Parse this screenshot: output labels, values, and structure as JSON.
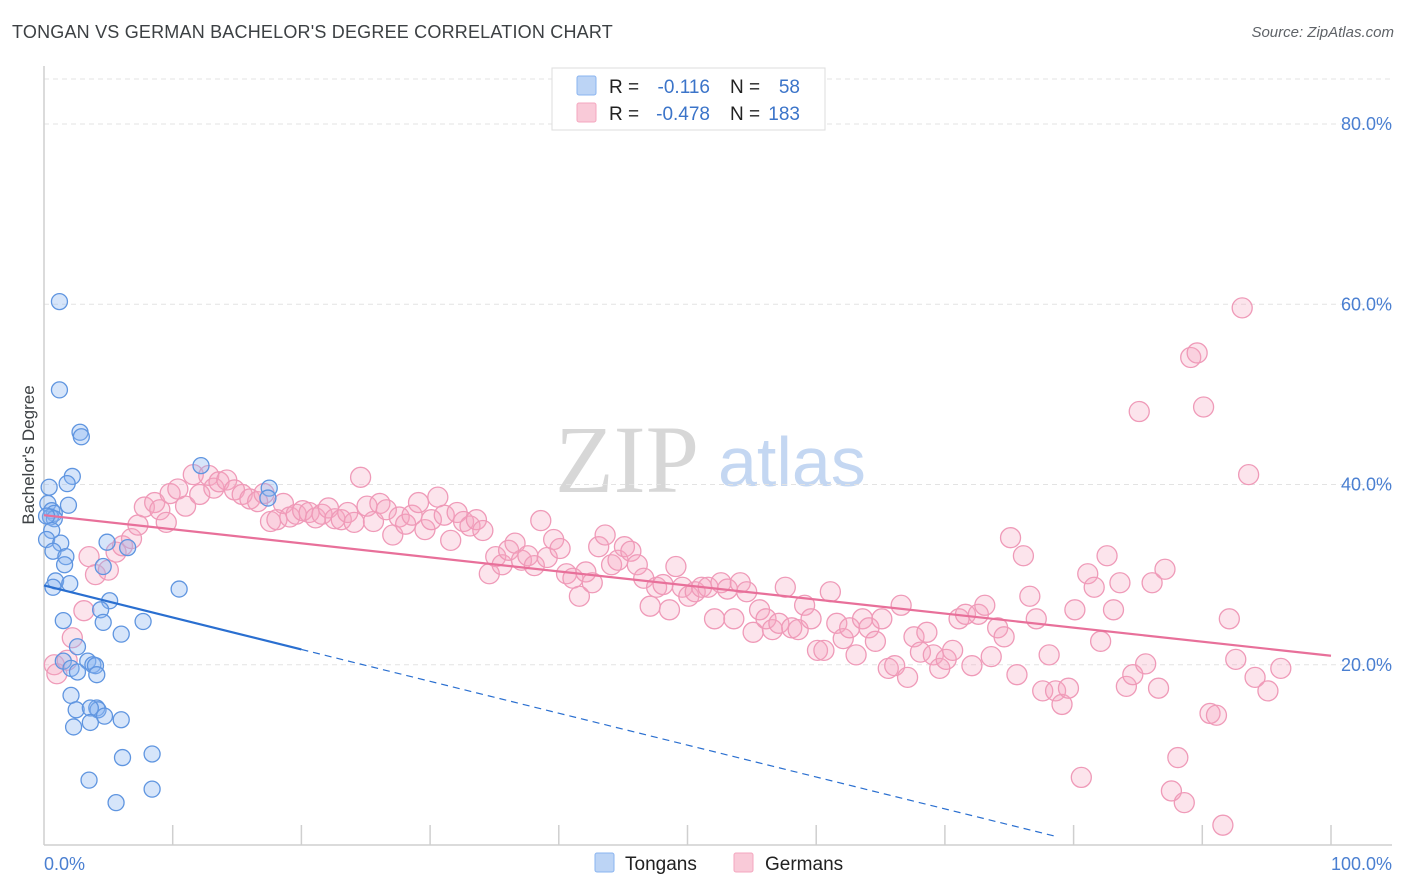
{
  "title": "TONGAN VS GERMAN BACHELOR'S DEGREE CORRELATION CHART",
  "source": "Source: ZipAtlas.com",
  "watermark": {
    "zip": "ZIP",
    "atlas": "atlas"
  },
  "legend": {
    "r_label": "R =",
    "n_label": "N =",
    "rows": [
      {
        "name": "Tongans",
        "r": "-0.116",
        "n": "58",
        "color": "#8ab4f0"
      },
      {
        "name": "Germans",
        "r": "-0.478",
        "n": "183",
        "color": "#f4a7bf"
      }
    ]
  },
  "chart_data": {
    "type": "scatter",
    "title": "TONGAN VS GERMAN BACHELOR'S DEGREE CORRELATION CHART",
    "xlabel": "",
    "ylabel": "Bachelor's Degree",
    "xlim": [
      0,
      100
    ],
    "ylim": [
      0,
      85
    ],
    "x_tick_labels": [
      "0.0%",
      "100.0%"
    ],
    "y_ticks": [
      20,
      40,
      60,
      80
    ],
    "y_tick_labels": [
      "20.0%",
      "40.0%",
      "60.0%",
      "80.0%"
    ],
    "grid": "horizontal dashed",
    "legend_position": "top-center",
    "series": [
      {
        "name": "Tongans",
        "color": "#6fa3ea",
        "trend": {
          "x0": 0,
          "y0": 28.8,
          "x1": 20,
          "y1": 21.7,
          "dashed_to_x": 78.5,
          "dashed_to_y": 1.0
        },
        "points": [
          [
            1.2,
            60.3
          ],
          [
            1.2,
            50.5
          ],
          [
            2.8,
            45.8
          ],
          [
            2.9,
            45.3
          ],
          [
            2.2,
            40.9
          ],
          [
            1.8,
            40.1
          ],
          [
            0.4,
            39.7
          ],
          [
            0.3,
            37.9
          ],
          [
            0.6,
            37.1
          ],
          [
            0.8,
            36.8
          ],
          [
            1.9,
            37.7
          ],
          [
            0.5,
            36.4
          ],
          [
            0.8,
            36.2
          ],
          [
            0.2,
            36.5
          ],
          [
            0.6,
            34.9
          ],
          [
            0.2,
            33.9
          ],
          [
            1.3,
            33.5
          ],
          [
            0.7,
            32.6
          ],
          [
            1.7,
            32.0
          ],
          [
            1.6,
            31.1
          ],
          [
            0.9,
            29.3
          ],
          [
            2.0,
            29.0
          ],
          [
            0.7,
            28.6
          ],
          [
            4.9,
            33.6
          ],
          [
            6.5,
            33.0
          ],
          [
            4.6,
            30.9
          ],
          [
            5.1,
            27.1
          ],
          [
            4.4,
            26.1
          ],
          [
            1.5,
            24.9
          ],
          [
            4.6,
            24.7
          ],
          [
            7.7,
            24.8
          ],
          [
            6.0,
            23.4
          ],
          [
            10.5,
            28.4
          ],
          [
            12.2,
            42.1
          ],
          [
            17.5,
            39.6
          ],
          [
            17.4,
            38.5
          ],
          [
            2.6,
            22.0
          ],
          [
            3.4,
            20.4
          ],
          [
            1.5,
            20.4
          ],
          [
            3.8,
            20.0
          ],
          [
            2.1,
            19.6
          ],
          [
            2.6,
            19.2
          ],
          [
            4.0,
            19.9
          ],
          [
            4.1,
            18.9
          ],
          [
            2.1,
            16.6
          ],
          [
            4.1,
            15.2
          ],
          [
            2.5,
            15.0
          ],
          [
            4.2,
            15.0
          ],
          [
            3.6,
            15.2
          ],
          [
            4.7,
            14.3
          ],
          [
            3.6,
            13.6
          ],
          [
            6.0,
            13.9
          ],
          [
            2.3,
            13.1
          ],
          [
            6.1,
            9.7
          ],
          [
            8.4,
            10.1
          ],
          [
            3.5,
            7.2
          ],
          [
            5.6,
            4.7
          ],
          [
            8.4,
            6.2
          ]
        ]
      },
      {
        "name": "Germans",
        "color": "#f08fb0",
        "trend": {
          "x0": 0,
          "y0": 36.6,
          "x1": 100,
          "y1": 21.0
        },
        "points": [
          [
            0.8,
            20.0
          ],
          [
            1.0,
            19.0
          ],
          [
            1.8,
            20.5
          ],
          [
            2.2,
            23.0
          ],
          [
            3.1,
            26.0
          ],
          [
            3.5,
            32.0
          ],
          [
            4.0,
            30.0
          ],
          [
            5.0,
            30.5
          ],
          [
            5.6,
            32.5
          ],
          [
            6.1,
            33.2
          ],
          [
            6.8,
            34.0
          ],
          [
            7.3,
            35.5
          ],
          [
            7.8,
            37.5
          ],
          [
            8.6,
            38.0
          ],
          [
            9.0,
            37.2
          ],
          [
            9.5,
            35.8
          ],
          [
            9.8,
            39.0
          ],
          [
            10.4,
            39.5
          ],
          [
            11.0,
            37.6
          ],
          [
            11.6,
            41.1
          ],
          [
            12.1,
            38.9
          ],
          [
            12.8,
            41.0
          ],
          [
            13.2,
            39.6
          ],
          [
            13.6,
            40.3
          ],
          [
            14.2,
            40.5
          ],
          [
            14.8,
            39.4
          ],
          [
            15.4,
            38.9
          ],
          [
            16.0,
            38.4
          ],
          [
            16.6,
            38.1
          ],
          [
            17.1,
            39.0
          ],
          [
            17.6,
            35.9
          ],
          [
            18.1,
            36.1
          ],
          [
            18.6,
            37.9
          ],
          [
            19.1,
            36.4
          ],
          [
            19.6,
            36.7
          ],
          [
            20.1,
            37.1
          ],
          [
            20.6,
            36.9
          ],
          [
            21.1,
            36.3
          ],
          [
            21.6,
            36.7
          ],
          [
            22.1,
            37.4
          ],
          [
            22.6,
            36.2
          ],
          [
            23.1,
            36.1
          ],
          [
            23.6,
            36.9
          ],
          [
            24.1,
            35.8
          ],
          [
            24.6,
            40.8
          ],
          [
            25.1,
            37.6
          ],
          [
            25.6,
            35.9
          ],
          [
            26.1,
            37.9
          ],
          [
            26.6,
            37.2
          ],
          [
            27.1,
            34.4
          ],
          [
            27.6,
            36.4
          ],
          [
            28.1,
            35.6
          ],
          [
            28.6,
            36.6
          ],
          [
            29.1,
            38.0
          ],
          [
            29.6,
            35.0
          ],
          [
            30.1,
            36.1
          ],
          [
            30.6,
            38.6
          ],
          [
            31.1,
            36.6
          ],
          [
            31.6,
            33.8
          ],
          [
            32.1,
            36.9
          ],
          [
            32.6,
            35.9
          ],
          [
            33.1,
            35.4
          ],
          [
            33.6,
            36.1
          ],
          [
            34.1,
            34.9
          ],
          [
            34.6,
            30.1
          ],
          [
            35.1,
            32.0
          ],
          [
            35.6,
            31.1
          ],
          [
            36.1,
            32.7
          ],
          [
            36.6,
            33.5
          ],
          [
            37.1,
            31.6
          ],
          [
            37.6,
            32.1
          ],
          [
            38.1,
            31.0
          ],
          [
            38.6,
            36.0
          ],
          [
            39.1,
            31.9
          ],
          [
            39.6,
            33.9
          ],
          [
            40.1,
            32.9
          ],
          [
            40.6,
            30.1
          ],
          [
            41.1,
            29.6
          ],
          [
            41.6,
            27.6
          ],
          [
            42.1,
            30.3
          ],
          [
            42.6,
            29.1
          ],
          [
            43.1,
            33.1
          ],
          [
            43.6,
            34.4
          ],
          [
            44.1,
            31.1
          ],
          [
            44.6,
            31.6
          ],
          [
            45.1,
            33.1
          ],
          [
            45.6,
            32.6
          ],
          [
            46.1,
            31.1
          ],
          [
            46.6,
            29.6
          ],
          [
            47.1,
            26.5
          ],
          [
            47.6,
            28.6
          ],
          [
            48.1,
            28.9
          ],
          [
            48.6,
            26.1
          ],
          [
            49.1,
            30.9
          ],
          [
            49.6,
            28.6
          ],
          [
            50.1,
            27.6
          ],
          [
            50.6,
            28.1
          ],
          [
            51.1,
            28.6
          ],
          [
            51.6,
            28.6
          ],
          [
            52.1,
            25.1
          ],
          [
            52.6,
            29.1
          ],
          [
            53.1,
            28.4
          ],
          [
            53.6,
            25.1
          ],
          [
            54.1,
            29.1
          ],
          [
            54.6,
            28.1
          ],
          [
            55.1,
            23.6
          ],
          [
            55.6,
            26.1
          ],
          [
            56.1,
            25.1
          ],
          [
            56.6,
            23.9
          ],
          [
            57.1,
            24.6
          ],
          [
            57.6,
            28.6
          ],
          [
            58.1,
            24.1
          ],
          [
            58.6,
            23.9
          ],
          [
            59.1,
            26.6
          ],
          [
            59.6,
            25.1
          ],
          [
            60.1,
            21.6
          ],
          [
            60.6,
            21.6
          ],
          [
            61.1,
            28.1
          ],
          [
            61.6,
            24.6
          ],
          [
            62.1,
            22.9
          ],
          [
            62.6,
            24.1
          ],
          [
            63.1,
            21.1
          ],
          [
            63.6,
            25.1
          ],
          [
            64.1,
            24.1
          ],
          [
            64.6,
            22.6
          ],
          [
            65.1,
            25.1
          ],
          [
            65.6,
            19.6
          ],
          [
            66.1,
            19.9
          ],
          [
            66.6,
            26.6
          ],
          [
            67.1,
            18.6
          ],
          [
            67.6,
            23.1
          ],
          [
            68.1,
            21.4
          ],
          [
            68.6,
            23.6
          ],
          [
            69.1,
            21.1
          ],
          [
            69.6,
            19.6
          ],
          [
            70.1,
            20.6
          ],
          [
            70.6,
            21.6
          ],
          [
            71.1,
            25.1
          ],
          [
            71.6,
            25.6
          ],
          [
            72.1,
            19.9
          ],
          [
            72.6,
            25.6
          ],
          [
            73.1,
            26.6
          ],
          [
            73.6,
            20.9
          ],
          [
            74.1,
            24.1
          ],
          [
            74.6,
            23.1
          ],
          [
            75.1,
            34.1
          ],
          [
            75.6,
            18.9
          ],
          [
            76.1,
            32.1
          ],
          [
            76.6,
            27.6
          ],
          [
            77.1,
            25.1
          ],
          [
            77.6,
            17.1
          ],
          [
            78.1,
            21.1
          ],
          [
            78.6,
            17.1
          ],
          [
            79.1,
            15.6
          ],
          [
            79.6,
            17.4
          ],
          [
            80.1,
            26.1
          ],
          [
            80.6,
            7.5
          ],
          [
            81.1,
            30.1
          ],
          [
            81.6,
            28.6
          ],
          [
            82.1,
            22.6
          ],
          [
            82.6,
            32.1
          ],
          [
            83.1,
            26.1
          ],
          [
            83.6,
            29.1
          ],
          [
            84.1,
            17.6
          ],
          [
            84.6,
            18.9
          ],
          [
            85.1,
            48.1
          ],
          [
            85.6,
            20.1
          ],
          [
            86.1,
            29.1
          ],
          [
            86.6,
            17.4
          ],
          [
            87.1,
            30.6
          ],
          [
            87.6,
            6.0
          ],
          [
            88.1,
            9.7
          ],
          [
            88.6,
            4.7
          ],
          [
            89.1,
            54.1
          ],
          [
            89.6,
            54.6
          ],
          [
            90.1,
            48.6
          ],
          [
            90.6,
            14.6
          ],
          [
            91.1,
            14.4
          ],
          [
            91.6,
            2.2
          ],
          [
            92.1,
            25.1
          ],
          [
            92.6,
            20.6
          ],
          [
            93.1,
            59.6
          ],
          [
            93.6,
            41.1
          ],
          [
            94.1,
            18.6
          ],
          [
            95.1,
            17.1
          ],
          [
            96.1,
            19.6
          ]
        ]
      }
    ]
  }
}
